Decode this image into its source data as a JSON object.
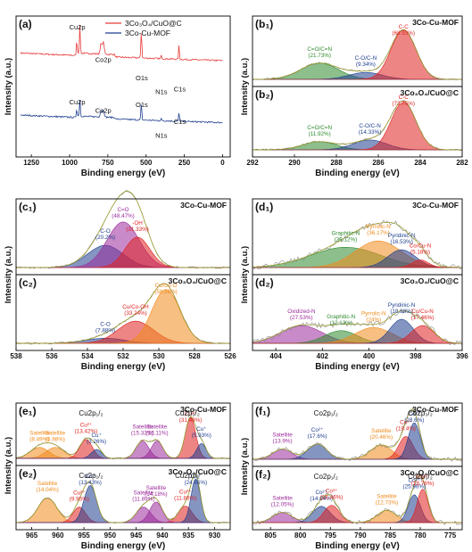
{
  "chart_data": [
    {
      "panel_label": "(a)",
      "type": "line",
      "xlabel": "Binding energy (eV)",
      "ylabel": "Intensity (a.u.)",
      "xlim": [
        1350,
        -50
      ],
      "xticks": [
        "1250",
        "1000",
        "750",
        "500",
        "250",
        "0"
      ],
      "xtickvals": [
        1250,
        1000,
        750,
        500,
        250,
        0
      ],
      "legend": [
        {
          "name": "3Co3O4/CuO@C",
          "color": "#e83a3a"
        },
        {
          "name": "3Co-Cu-MOF",
          "color": "#1f3e8f"
        }
      ],
      "legend_text": [
        "3Co₃O₄/CuO@C",
        "3Co-Cu-MOF"
      ],
      "annotations": [
        {
          "text": "Cu2p",
          "x": 950,
          "y": 0.93
        },
        {
          "text": "Co2p",
          "x": 780,
          "y": 0.7
        },
        {
          "text": "O1s",
          "x": 528,
          "y": 0.57
        },
        {
          "text": "N1s",
          "x": 400,
          "y": 0.47
        },
        {
          "text": "C1s",
          "x": 280,
          "y": 0.49
        },
        {
          "text": "Cu2p",
          "x": 950,
          "y": 0.4
        },
        {
          "text": "Co2p",
          "x": 780,
          "y": 0.34
        },
        {
          "text": "O1s",
          "x": 528,
          "y": 0.38
        },
        {
          "text": "N1s",
          "x": 400,
          "y": 0.16
        },
        {
          "text": "C1s",
          "x": 280,
          "y": 0.26
        }
      ]
    },
    {
      "panel_label": "(b₁)",
      "type": "area",
      "title": "3Co-Cu-MOF",
      "xlim": [
        292,
        282
      ],
      "peaks": [
        {
          "label": "C=O/C=N",
          "value": "(21.73%)",
          "center": 288.8,
          "color": "#2d8a2d"
        },
        {
          "label": "C-O/C-N",
          "value": "(9.34%)",
          "center": 286.6,
          "color": "#1f3e8f"
        },
        {
          "label": "C-C",
          "value": "(68.93%)",
          "center": 284.8,
          "color": "#e02020"
        }
      ]
    },
    {
      "panel_label": "(b₂)",
      "type": "area",
      "title": "3Co₃O₄/CuO@C",
      "xlabel": "Binding energy (eV)",
      "ylabel": "Intensity (a.u.)",
      "xlim": [
        292,
        282
      ],
      "xticks": [
        "292",
        "290",
        "288",
        "286",
        "284",
        "282"
      ],
      "xtickvals": [
        292,
        290,
        288,
        286,
        284,
        282
      ],
      "peaks": [
        {
          "label": "C=O/C=N",
          "value": "(11.92%)",
          "center": 288.8,
          "color": "#2d8a2d"
        },
        {
          "label": "C-O/C-N",
          "value": "(14.33%)",
          "center": 286.4,
          "color": "#1f3e8f"
        },
        {
          "label": "C-C",
          "value": "(73.75%)",
          "center": 284.8,
          "color": "#e02020"
        }
      ]
    },
    {
      "panel_label": "(c₁)",
      "type": "area",
      "title": "3Co-Cu-MOF",
      "xlim": [
        538,
        526
      ],
      "peaks": [
        {
          "label": "C-O",
          "value": "(20.2%)",
          "center": 533.0,
          "color": "#1f3e8f"
        },
        {
          "label": "C=O",
          "value": "(48.47%)",
          "center": 532.0,
          "color": "#9b2a9b"
        },
        {
          "label": "-OH",
          "value": "(31.33%)",
          "center": 531.2,
          "color": "#e02020"
        }
      ]
    },
    {
      "panel_label": "(c₂)",
      "type": "area",
      "title": "3Co₃O₄/CuO@C",
      "xlabel": "Binding energy (eV)",
      "ylabel": "Intensity (a.u.)",
      "xlim": [
        538,
        526
      ],
      "xticks": [
        "538",
        "536",
        "534",
        "532",
        "530",
        "528",
        "526"
      ],
      "xtickvals": [
        538,
        536,
        534,
        532,
        530,
        528,
        526
      ],
      "peaks": [
        {
          "label": "C-O",
          "value": "(7.88%)",
          "center": 533.0,
          "color": "#1f3e8f"
        },
        {
          "label": "Cu/Co-OH",
          "value": "(33.24%)",
          "center": 531.3,
          "color": "#e02020"
        },
        {
          "label": "Cu/Co-O",
          "value": "(58.88%)",
          "center": 529.6,
          "color": "#f08a1c"
        }
      ]
    },
    {
      "panel_label": "(d₁)",
      "type": "area",
      "title": "3Co-Cu-MOF",
      "xlim": [
        405,
        396
      ],
      "peaks": [
        {
          "label": "Graphitic-N",
          "value": "(39.12%)",
          "center": 401.0,
          "color": "#2d8a2d"
        },
        {
          "label": "Pyrrolic-N",
          "value": "(36.17%)",
          "center": 399.6,
          "color": "#f08a1c"
        },
        {
          "label": "Pyridinic-N",
          "value": "(16.53%)",
          "center": 398.6,
          "color": "#1f3e8f"
        },
        {
          "label": "Co/Cu-N",
          "value": "(5.18%)",
          "center": 397.8,
          "color": "#e02020"
        }
      ]
    },
    {
      "panel_label": "(d₂)",
      "type": "area",
      "title": "3Co₃O₄/CuO@C",
      "xlabel": "Binding energy (eV)",
      "ylabel": "Intensity (a.u.)",
      "xlim": [
        405,
        396
      ],
      "xticks": [
        "404",
        "402",
        "400",
        "398",
        "396"
      ],
      "xtickvals": [
        404,
        402,
        400,
        398,
        396
      ],
      "peaks": [
        {
          "label": "Oxidized-N",
          "value": "(27.53%)",
          "center": 402.9,
          "color": "#9b2a9b"
        },
        {
          "label": "Graphitic-N",
          "value": "(12.13%)",
          "center": 401.2,
          "color": "#2d8a2d"
        },
        {
          "label": "Pyrrolic-N",
          "value": "(24%)",
          "center": 399.8,
          "color": "#f08a1c"
        },
        {
          "label": "Pyridinic-N",
          "value": "(18.88%)",
          "center": 398.6,
          "color": "#1f3e8f"
        },
        {
          "label": "Co/Cu-N",
          "value": "(17.46%)",
          "center": 397.7,
          "color": "#e02020"
        }
      ]
    },
    {
      "panel_label": "(e₁)",
      "type": "area",
      "title": "3Co-Cu-MOF",
      "xlim": [
        968,
        927
      ],
      "orbitals": [
        "Cu2p₁/₂",
        "Cu2p₃/₂"
      ],
      "peaks": [
        {
          "label": "Satellite",
          "value": "(8.49%)",
          "center": 963.5,
          "color": "#f08a1c"
        },
        {
          "label": "Satellite",
          "value": "(5.98%)",
          "center": 960.5,
          "color": "#f08a1c"
        },
        {
          "label": "Cu²⁺",
          "value": "(13.42%)",
          "center": 954.6,
          "color": "#e02020"
        },
        {
          "label": "Cu⁺",
          "value": "(3.26%)",
          "center": 952.6,
          "color": "#1f3e8f"
        },
        {
          "label": "Satellite",
          "value": "(15.32%)",
          "center": 943.8,
          "color": "#9b2a9b"
        },
        {
          "label": "Satellite",
          "value": "(16.11%)",
          "center": 941.0,
          "color": "#9b2a9b"
        },
        {
          "label": "Cu²⁺",
          "value": "(31.49%)",
          "center": 934.6,
          "color": "#e02020"
        },
        {
          "label": "Cu⁺",
          "value": "(5.93%)",
          "center": 932.5,
          "color": "#1f3e8f"
        }
      ]
    },
    {
      "panel_label": "(e₂)",
      "type": "area",
      "title": "3Co₃O₄/CuO@C",
      "xlabel": "Binding energy (eV)",
      "ylabel": "Intensity (a.u.)",
      "xlim": [
        968,
        927
      ],
      "xticks": [
        "965",
        "960",
        "955",
        "950",
        "945",
        "940",
        "935",
        "930"
      ],
      "xtickvals": [
        965,
        960,
        955,
        950,
        945,
        940,
        935,
        930
      ],
      "orbitals": [
        "Cu2p₁/₂",
        "Cu2p₃/₂"
      ],
      "peaks": [
        {
          "label": "Satellite",
          "value": "(14.04%)",
          "center": 962.0,
          "color": "#f08a1c"
        },
        {
          "label": "Cu²⁺",
          "value": "(9.95%)",
          "center": 955.9,
          "color": "#e02020"
        },
        {
          "label": "Cu⁺",
          "value": "(13.43%)",
          "center": 953.8,
          "color": "#1f3e8f"
        },
        {
          "label": "Satellite",
          "value": "(11.89%)",
          "center": 943.6,
          "color": "#9b2a9b"
        },
        {
          "label": "Satellite",
          "value": "(14.18%)",
          "center": 941.2,
          "color": "#9b2a9b"
        },
        {
          "label": "Cu²⁺",
          "value": "(11.86%)",
          "center": 935.6,
          "color": "#e02020"
        },
        {
          "label": "Cu⁺",
          "value": "(24.65%)",
          "center": 933.6,
          "color": "#1f3e8f"
        }
      ]
    },
    {
      "panel_label": "(f₁)",
      "type": "area",
      "title": "3Co-Cu-MOF",
      "xlim": [
        808,
        773
      ],
      "orbitals": [
        "Co2p₁/₂",
        "Co2p₃/₂"
      ],
      "peaks": [
        {
          "label": "Satellite",
          "value": "(13.9%)",
          "center": 803.0,
          "color": "#9b2a9b"
        },
        {
          "label": "Co²⁺",
          "value": "(17.6%)",
          "center": 797.2,
          "color": "#1f3e8f"
        },
        {
          "label": "Satellite",
          "value": "(20.46%)",
          "center": 786.5,
          "color": "#f08a1c"
        },
        {
          "label": "Co³⁺",
          "value": "(19.4%)",
          "center": 782.4,
          "color": "#e02020"
        },
        {
          "label": "Co²⁺",
          "value": "(28.6%)",
          "center": 781.0,
          "color": "#1f3e8f"
        }
      ]
    },
    {
      "panel_label": "(f₂)",
      "type": "area",
      "title": "3Co₃O₄/CuO@C",
      "xlabel": "Binding energy (eV)",
      "ylabel": "Intensity (a.u.)",
      "xlim": [
        808,
        773
      ],
      "xticks": [
        "805",
        "800",
        "795",
        "790",
        "785",
        "780",
        "775"
      ],
      "xtickvals": [
        805,
        800,
        795,
        790,
        785,
        780,
        775
      ],
      "orbitals": [
        "Co2p₁/₂",
        "Co2p₃/₂"
      ],
      "peaks": [
        {
          "label": "Satellite",
          "value": "(12.05%)",
          "center": 803.0,
          "color": "#9b2a9b"
        },
        {
          "label": "Co²⁺",
          "value": "(14.04%)",
          "center": 796.5,
          "color": "#1f3e8f"
        },
        {
          "label": "Co³⁺",
          "value": "(16.46%)",
          "center": 794.8,
          "color": "#e02020"
        },
        {
          "label": "Satellite",
          "value": "(12.73%)",
          "center": 785.6,
          "color": "#f08a1c"
        },
        {
          "label": "Co²⁺",
          "value": "(25.96%)",
          "center": 781.0,
          "color": "#1f3e8f"
        },
        {
          "label": "Co³⁺",
          "value": "(18.76%)",
          "center": 779.6,
          "color": "#e02020"
        }
      ]
    }
  ]
}
